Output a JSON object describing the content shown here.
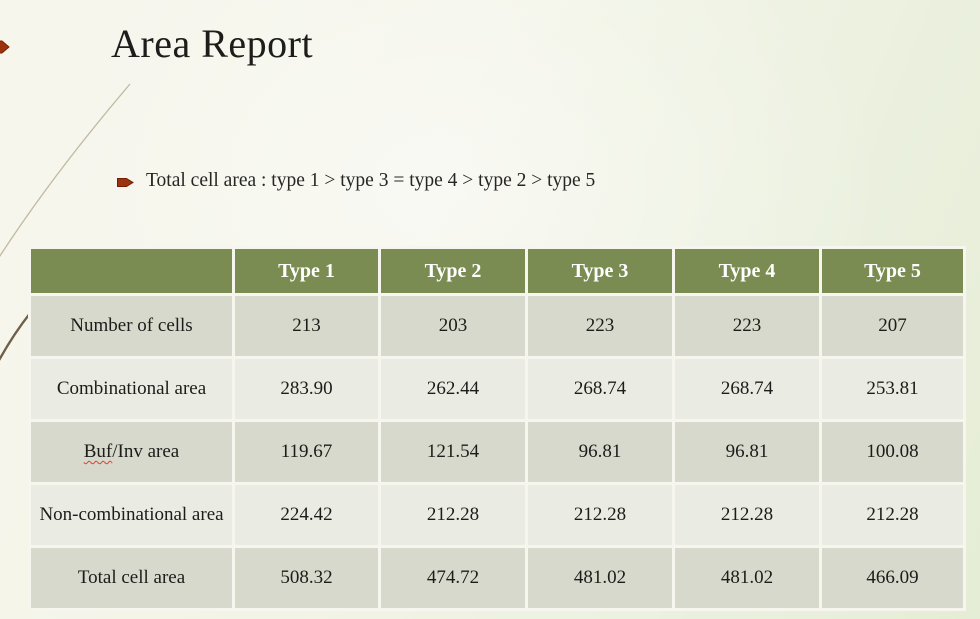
{
  "slide": {
    "title": "Area Report",
    "bullet": "Total cell area : type 1 > type 3 = type 4 > type 2 > type 5"
  },
  "table": {
    "columns": [
      "",
      "Type 1",
      "Type 2",
      "Type 3",
      "Type 4",
      "Type 5"
    ],
    "rows": [
      {
        "label": "Number of cells",
        "values": [
          "213",
          "203",
          "223",
          "223",
          "207"
        ]
      },
      {
        "label": "Combinational area",
        "values": [
          "283.90",
          "262.44",
          "268.74",
          "268.74",
          "253.81"
        ]
      },
      {
        "label": "Buf/Inv area",
        "spell_flag": "Buf",
        "values": [
          "119.67",
          "121.54",
          "96.81",
          "96.81",
          "100.08"
        ]
      },
      {
        "label": "Non-combinational area",
        "values": [
          "224.42",
          "212.28",
          "212.28",
          "212.28",
          "212.28"
        ]
      },
      {
        "label": "Total cell area",
        "values": [
          "508.32",
          "474.72",
          "481.02",
          "481.02",
          "466.09"
        ]
      }
    ]
  },
  "colors": {
    "header_bg": "#7a8c52",
    "row_dark": "#d6d9cc",
    "row_light": "#eaece3",
    "cell_border": "#f6f6ee",
    "bullet_arrow": "#9c330e",
    "decor_line_light": "#b9ae93",
    "decor_line_dark": "#6f5f48",
    "title_text": "#1d1d1b"
  },
  "icons": {
    "bullet": "arrow-right-bullet-icon",
    "edge": "edge-arrow-icon"
  }
}
